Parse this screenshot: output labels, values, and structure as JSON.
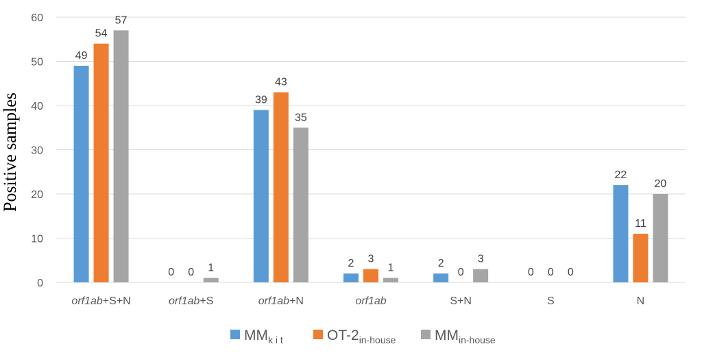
{
  "chart_data": {
    "type": "bar",
    "ylabel": "Positive samples",
    "ylim": [
      0,
      60
    ],
    "yticks": [
      0,
      10,
      20,
      30,
      40,
      50,
      60
    ],
    "grid": true,
    "legend_position": "bottom",
    "categories": [
      {
        "italic": "orf1ab",
        "rest": "+S+N"
      },
      {
        "italic": "orf1ab",
        "rest": "+S"
      },
      {
        "italic": "orf1ab",
        "rest": "+N"
      },
      {
        "italic": "orf1ab",
        "rest": ""
      },
      {
        "italic": "",
        "rest": "S+N"
      },
      {
        "italic": "",
        "rest": "S"
      },
      {
        "italic": "",
        "rest": "N"
      }
    ],
    "series": [
      {
        "name": "MM",
        "subscript": "k i t",
        "color": "#5b9bd5",
        "values": [
          49,
          0,
          39,
          2,
          2,
          0,
          22
        ]
      },
      {
        "name": "OT-2",
        "subscript": "in-house",
        "color": "#ed7d31",
        "values": [
          54,
          0,
          43,
          3,
          0,
          0,
          11
        ]
      },
      {
        "name": "MM",
        "subscript": "in-house",
        "color": "#a5a5a5",
        "values": [
          57,
          1,
          35,
          1,
          3,
          0,
          20
        ]
      }
    ]
  }
}
